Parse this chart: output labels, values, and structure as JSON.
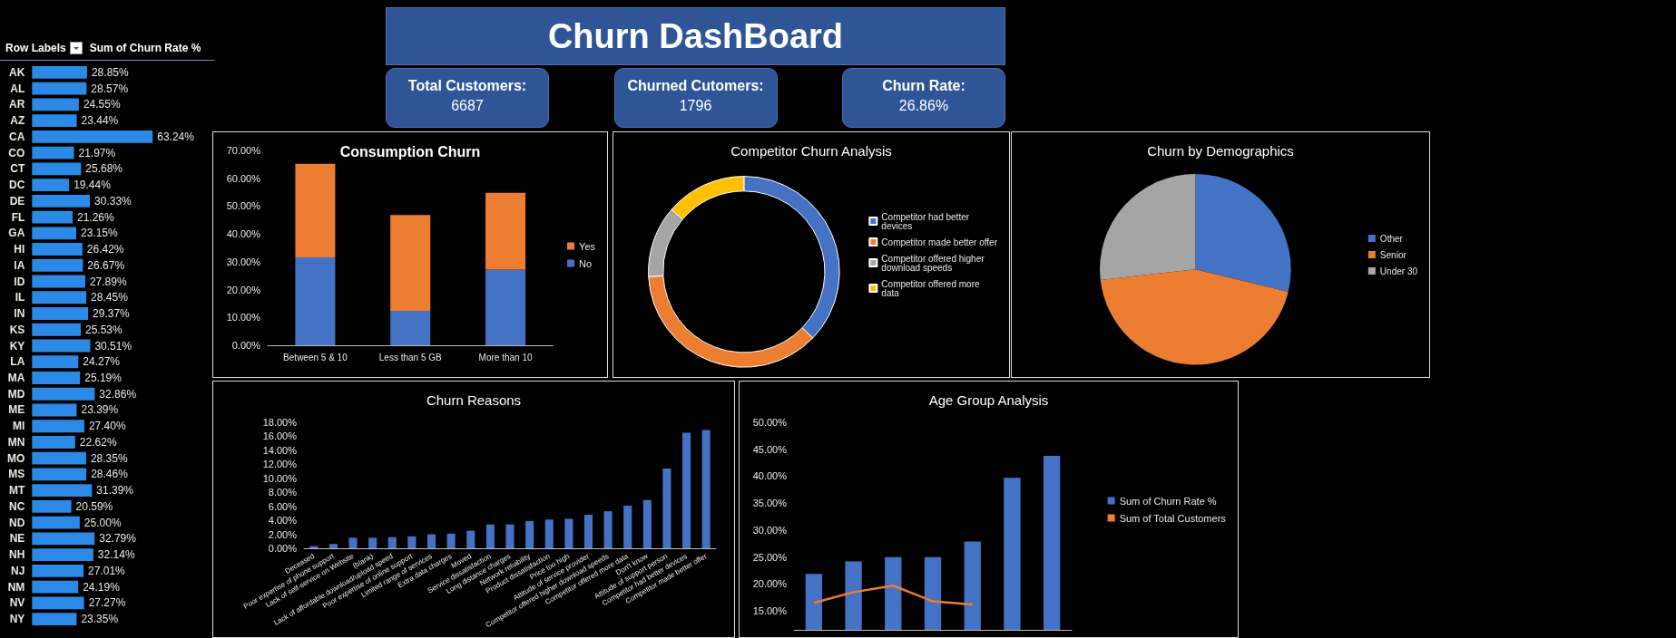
{
  "chart_data": [
    {
      "type": "bar",
      "orientation": "horizontal",
      "ylabel": "Row Labels",
      "xlabel": "Sum of Churn Rate %",
      "categories": [
        "AK",
        "AL",
        "AR",
        "AZ",
        "CA",
        "CO",
        "CT",
        "DC",
        "DE",
        "FL",
        "GA",
        "HI",
        "IA",
        "ID",
        "IL",
        "IN",
        "KS",
        "KY",
        "LA",
        "MA",
        "MD",
        "ME",
        "MI",
        "MN",
        "MO",
        "MS",
        "MT",
        "NC",
        "ND",
        "NE",
        "NH",
        "NJ",
        "NM",
        "NV",
        "NY"
      ],
      "series": [
        {
          "color": "#2b8ae8",
          "values": [
            28.85,
            28.57,
            24.55,
            23.44,
            63.24,
            21.97,
            25.68,
            19.44,
            30.33,
            21.26,
            23.15,
            26.42,
            26.67,
            27.89,
            28.45,
            29.37,
            25.53,
            30.51,
            24.27,
            25.19,
            32.86,
            23.39,
            27.4,
            22.62,
            28.35,
            28.46,
            31.39,
            20.59,
            25,
            32.79,
            32.14,
            27.01,
            24.19,
            27.27,
            23.35
          ],
          "value_labels": [
            "28.85%",
            "28.57%",
            "24.55%",
            "23.44%",
            "63.24%",
            "21.97%",
            "25.68%",
            "19.44%",
            "30.33%",
            "21.26%",
            "23.15%",
            "26.42%",
            "26.67%",
            "27.89%",
            "28.45%",
            "29.37%",
            "25.53%",
            "30.51%",
            "24.27%",
            "25.19%",
            "32.86%",
            "23.39%",
            "27.40%",
            "22.62%",
            "28.35%",
            "28.46%",
            "31.39%",
            "20.59%",
            "25.00%",
            "32.79%",
            "32.14%",
            "27.01%",
            "24.19%",
            "27.27%",
            "23.35%"
          ]
        }
      ]
    },
    {
      "type": "other",
      "title": "Churn DashBoard",
      "annotations": [
        "Total Customers:",
        "6687",
        "Churned Cutomers:",
        "1796",
        "Churn Rate:",
        "26.86%"
      ]
    },
    {
      "type": "bar",
      "stacked": true,
      "title": "Consumption Churn",
      "categories": [
        "Between 5 & 10",
        "Less than 5 GB",
        "More than 10"
      ],
      "legend": "right",
      "series": [
        {
          "name": "No",
          "color": "#4472c4",
          "values": [
            31.6,
            12.4,
            27.2
          ]
        },
        {
          "name": "Yes",
          "color": "#ed7d31",
          "values": [
            33.6,
            34.4,
            27.6
          ]
        }
      ],
      "ylim": [
        0,
        70
      ],
      "yticks": [
        {
          "value": 0,
          "label": "0.00%"
        },
        {
          "value": 10,
          "label": "10.00%"
        },
        {
          "value": 20,
          "label": "20.00%"
        },
        {
          "value": 30,
          "label": "30.00%"
        },
        {
          "value": 40,
          "label": "40.00%"
        },
        {
          "value": 50,
          "label": "50.00%"
        },
        {
          "value": 60,
          "label": "60.00%"
        },
        {
          "value": 70,
          "label": "70.00%"
        }
      ]
    },
    {
      "type": "donut",
      "title": "Competitor Churn Analysis",
      "legend": "right",
      "categories": [
        "Competitor had better devices",
        "Competitor made better offer",
        "Competitor offered higher download speeds",
        "Competitor offered more data"
      ],
      "values": [
        37.2,
        37.0,
        12.1,
        13.7
      ],
      "colors": [
        "#4472c4",
        "#ed7d31",
        "#a5a5a5",
        "#ffc000"
      ]
    },
    {
      "type": "pie",
      "title": "Churn by Demographics",
      "legend": "right",
      "categories": [
        "Other",
        "Senior",
        "Under 30"
      ],
      "values": [
        28.8,
        44.4,
        26.8
      ],
      "colors": [
        "#4472c4",
        "#ed7d31",
        "#a5a5a5"
      ]
    },
    {
      "type": "bar",
      "title": "Churn Reasons",
      "categories": [
        "Deceased",
        "Poor expertise of phone support",
        "Lack of self-service on Website",
        "(blank)",
        "Lack of affordable download/upload speed",
        "Poor expertise of online support",
        "Limited range of services",
        "Extra data charges",
        "Moved",
        "Service dissatisfaction",
        "Long distance charges",
        "Network reliability",
        "Product dissatisfaction",
        "Price too high",
        "Attitude of service provider",
        "Competitor offered higher download speeds",
        "Competitor offered more data",
        "Don't know",
        "Attitude of support person",
        "Competitor had better devices",
        "Competitor made better offer"
      ],
      "series": [
        {
          "color": "#4472c4",
          "values": [
            0.3,
            0.6,
            1.5,
            1.5,
            1.6,
            1.7,
            2.0,
            2.1,
            2.5,
            3.4,
            3.4,
            3.9,
            4.1,
            4.2,
            4.8,
            5.3,
            6.1,
            6.9,
            11.4,
            16.5,
            16.9
          ]
        }
      ],
      "ylim": [
        0,
        18
      ],
      "yticks": [
        {
          "value": 0,
          "label": "0.00%"
        },
        {
          "value": 2,
          "label": "2.00%"
        },
        {
          "value": 4,
          "label": "4.00%"
        },
        {
          "value": 6,
          "label": "6.00%"
        },
        {
          "value": 8,
          "label": "8.00%"
        },
        {
          "value": 10,
          "label": "10.00%"
        },
        {
          "value": 12,
          "label": "12.00%"
        },
        {
          "value": 14,
          "label": "14.00%"
        },
        {
          "value": 16,
          "label": "16.00%"
        },
        {
          "value": 18,
          "label": "18.00%"
        }
      ]
    },
    {
      "type": "bar",
      "title": "Age Group Analysis",
      "legend": "right",
      "marker": "none",
      "categories": [
        null,
        null,
        null,
        null,
        null,
        null,
        null
      ],
      "series": [
        {
          "name": "Sum of Churn Rate %",
          "color": "#4472c4",
          "values": [
            21.9,
            24.2,
            25,
            25,
            27.9,
            39.7,
            43.8
          ]
        },
        {
          "name": "Sum of Total Customers",
          "type": "line",
          "color": "#ed7d31",
          "values": [
            16.5,
            18.5,
            19.7,
            16.8,
            16.2,
            null,
            null
          ]
        }
      ],
      "ylim": [
        11.5,
        50
      ],
      "yticks": [
        {
          "value": 15,
          "label": "15.00%"
        },
        {
          "value": 20,
          "label": "20.00%"
        },
        {
          "value": 25,
          "label": "25.00%"
        },
        {
          "value": 30,
          "label": "30.00%"
        },
        {
          "value": 35,
          "label": "35.00%"
        },
        {
          "value": 40,
          "label": "40.00%"
        },
        {
          "value": 45,
          "label": "45.00%"
        },
        {
          "value": 50,
          "label": "50.00%"
        }
      ]
    }
  ]
}
